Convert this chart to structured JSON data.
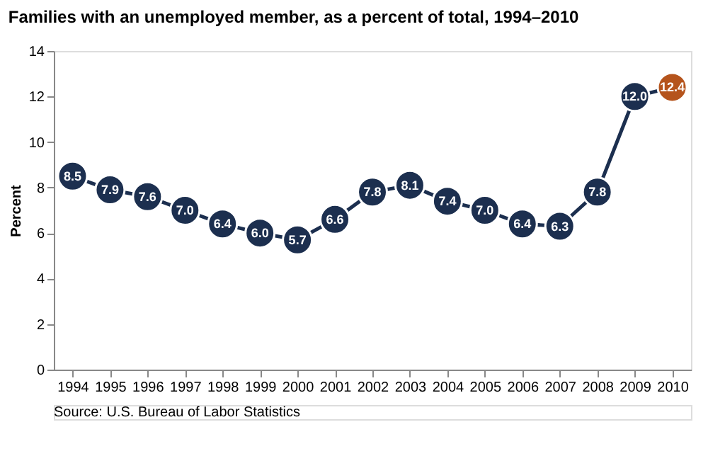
{
  "chart_data": {
    "type": "line",
    "title": "Families with an unemployed member, as a percent of total, 1994–2010",
    "ylabel": "Percent",
    "categories": [
      "1994",
      "1995",
      "1996",
      "1997",
      "1998",
      "1999",
      "2000",
      "2001",
      "2002",
      "2003",
      "2004",
      "2005",
      "2006",
      "2007",
      "2008",
      "2009",
      "2010"
    ],
    "series": [
      {
        "color": "#1c2f4f",
        "colors": [
          "#1c2f4f",
          "#1c2f4f",
          "#1c2f4f",
          "#1c2f4f",
          "#1c2f4f",
          "#1c2f4f",
          "#1c2f4f",
          "#1c2f4f",
          "#1c2f4f",
          "#1c2f4f",
          "#1c2f4f",
          "#1c2f4f",
          "#1c2f4f",
          "#1c2f4f",
          "#1c2f4f",
          "#1c2f4f",
          "#b5541c"
        ],
        "values": [
          8.5,
          7.9,
          7.6,
          7.0,
          6.4,
          6.0,
          5.7,
          6.6,
          7.8,
          8.1,
          7.4,
          7.0,
          6.4,
          6.3,
          7.8,
          12.0,
          12.4
        ],
        "value_labels": [
          "8.5",
          "7.9",
          "7.6",
          "7.0",
          "6.4",
          "6.0",
          "5.7",
          "6.6",
          "7.8",
          "8.1",
          "7.4",
          "7.0",
          "6.4",
          "6.3",
          "7.8",
          "12.0",
          "12.4"
        ]
      }
    ],
    "ylim": [
      0,
      14
    ],
    "yticks": [
      0,
      2,
      4,
      6,
      8,
      10,
      12,
      14
    ],
    "grid": false,
    "marker": "circle",
    "line_style": "solid",
    "annotations": [
      "Source: U.S. Bureau of Labor Statistics"
    ]
  }
}
